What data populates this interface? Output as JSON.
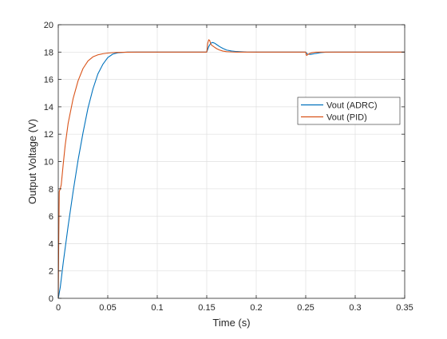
{
  "chart_data": {
    "type": "line",
    "title": "",
    "xlabel": "Time (s)",
    "ylabel": "Output Voltage (V)",
    "xlim": [
      0,
      0.35
    ],
    "ylim": [
      0,
      20
    ],
    "xticks": [
      0,
      0.05,
      0.1,
      0.15,
      0.2,
      0.25,
      0.3,
      0.35
    ],
    "xtick_labels": [
      "0",
      "0.05",
      "0.1",
      "0.15",
      "0.2",
      "0.25",
      "0.3",
      "0.35"
    ],
    "yticks": [
      0,
      2,
      4,
      6,
      8,
      10,
      12,
      14,
      16,
      18,
      20
    ],
    "ytick_labels": [
      "0",
      "2",
      "4",
      "6",
      "8",
      "10",
      "12",
      "14",
      "16",
      "18",
      "20"
    ],
    "grid": true,
    "legend_position": "right",
    "series": [
      {
        "name": "Vout (ADRC)",
        "color": "#0072BD",
        "x": [
          0,
          0.002,
          0.005,
          0.01,
          0.015,
          0.02,
          0.025,
          0.03,
          0.035,
          0.04,
          0.045,
          0.05,
          0.055,
          0.06,
          0.065,
          0.07,
          0.08,
          0.09,
          0.1,
          0.12,
          0.14,
          0.15,
          0.1505,
          0.152,
          0.154,
          0.156,
          0.158,
          0.16,
          0.163,
          0.166,
          0.17,
          0.175,
          0.18,
          0.19,
          0.2,
          0.22,
          0.24,
          0.25,
          0.2505,
          0.252,
          0.255,
          0.26,
          0.265,
          0.27,
          0.28,
          0.3,
          0.32,
          0.35
        ],
        "y": [
          0,
          0.8,
          2.6,
          5.3,
          7.8,
          10.1,
          12.1,
          13.9,
          15.3,
          16.4,
          17.1,
          17.6,
          17.85,
          17.95,
          17.98,
          18.0,
          18.0,
          18.0,
          18.0,
          18.0,
          18.0,
          18.0,
          18.1,
          18.4,
          18.65,
          18.7,
          18.65,
          18.55,
          18.4,
          18.28,
          18.15,
          18.08,
          18.04,
          18.01,
          18.0,
          18.0,
          18.0,
          18.0,
          17.95,
          17.85,
          17.83,
          17.9,
          17.96,
          17.99,
          18.0,
          18.0,
          18.0,
          18.0
        ]
      },
      {
        "name": "Vout (PID)",
        "color": "#D95319",
        "x": [
          0,
          0.0005,
          0.001,
          0.002,
          0.003,
          0.005,
          0.007,
          0.01,
          0.015,
          0.02,
          0.025,
          0.03,
          0.035,
          0.04,
          0.045,
          0.05,
          0.055,
          0.06,
          0.07,
          0.08,
          0.1,
          0.12,
          0.14,
          0.15,
          0.1505,
          0.151,
          0.152,
          0.153,
          0.154,
          0.155,
          0.156,
          0.158,
          0.16,
          0.163,
          0.166,
          0.17,
          0.175,
          0.18,
          0.19,
          0.2,
          0.22,
          0.24,
          0.25,
          0.2505,
          0.251,
          0.252,
          0.254,
          0.256,
          0.258,
          0.26,
          0.265,
          0.27,
          0.28,
          0.3,
          0.32,
          0.35
        ],
        "y": [
          0,
          4.5,
          7.8,
          8.0,
          8.3,
          9.8,
          11.2,
          12.8,
          14.6,
          15.9,
          16.8,
          17.35,
          17.65,
          17.8,
          17.88,
          17.93,
          17.96,
          17.98,
          17.99,
          18.0,
          18.0,
          18.0,
          18.0,
          18.0,
          18.3,
          18.65,
          18.9,
          18.85,
          18.6,
          18.5,
          18.45,
          18.35,
          18.25,
          18.15,
          18.08,
          18.03,
          18.01,
          18.0,
          18.0,
          18.0,
          18.0,
          18.0,
          18.0,
          17.8,
          17.75,
          17.82,
          17.9,
          17.95,
          17.98,
          17.99,
          18.0,
          18.0,
          18.0,
          18.0,
          18.0,
          18.0
        ]
      }
    ]
  }
}
